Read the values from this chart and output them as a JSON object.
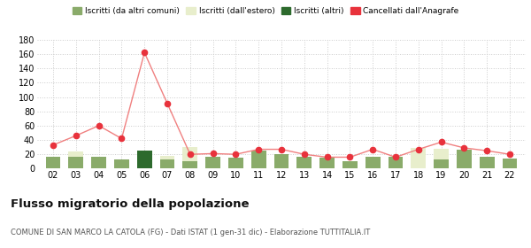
{
  "years": [
    "02",
    "03",
    "04",
    "05",
    "06",
    "07",
    "08",
    "09",
    "10",
    "11",
    "12",
    "13",
    "14",
    "15",
    "16",
    "17",
    "18",
    "19",
    "20",
    "21",
    "22"
  ],
  "iscritti_altri_comuni": [
    17,
    17,
    17,
    13,
    0,
    13,
    10,
    16,
    15,
    25,
    20,
    17,
    15,
    11,
    16,
    16,
    0,
    13,
    27,
    17,
    14
  ],
  "iscritti_estero": [
    0,
    7,
    0,
    0,
    0,
    5,
    20,
    0,
    0,
    0,
    0,
    0,
    0,
    0,
    0,
    0,
    29,
    15,
    0,
    0,
    0
  ],
  "iscritti_altri": [
    0,
    0,
    0,
    0,
    25,
    0,
    0,
    0,
    0,
    0,
    0,
    0,
    0,
    0,
    0,
    0,
    0,
    0,
    0,
    0,
    0
  ],
  "cancellati": [
    33,
    46,
    60,
    42,
    162,
    91,
    20,
    21,
    20,
    27,
    27,
    20,
    16,
    16,
    27,
    16,
    27,
    37,
    29,
    25,
    20
  ],
  "color_altri_comuni": "#8aab6a",
  "color_estero": "#e8eecc",
  "color_altri": "#2d6a2d",
  "color_cancellati": "#e8323c",
  "color_line": "#f08080",
  "ylim": [
    0,
    180
  ],
  "yticks": [
    0,
    20,
    40,
    60,
    80,
    100,
    120,
    140,
    160,
    180
  ],
  "title": "Flusso migratorio della popolazione",
  "subtitle": "COMUNE DI SAN MARCO LA CATOLA (FG) - Dati ISTAT (1 gen-31 dic) - Elaborazione TUTTITALIA.IT",
  "legend_labels": [
    "Iscritti (da altri comuni)",
    "Iscritti (dall'estero)",
    "Iscritti (altri)",
    "Cancellati dall'Anagrafe"
  ],
  "bg_color": "#ffffff",
  "grid_color": "#cccccc"
}
